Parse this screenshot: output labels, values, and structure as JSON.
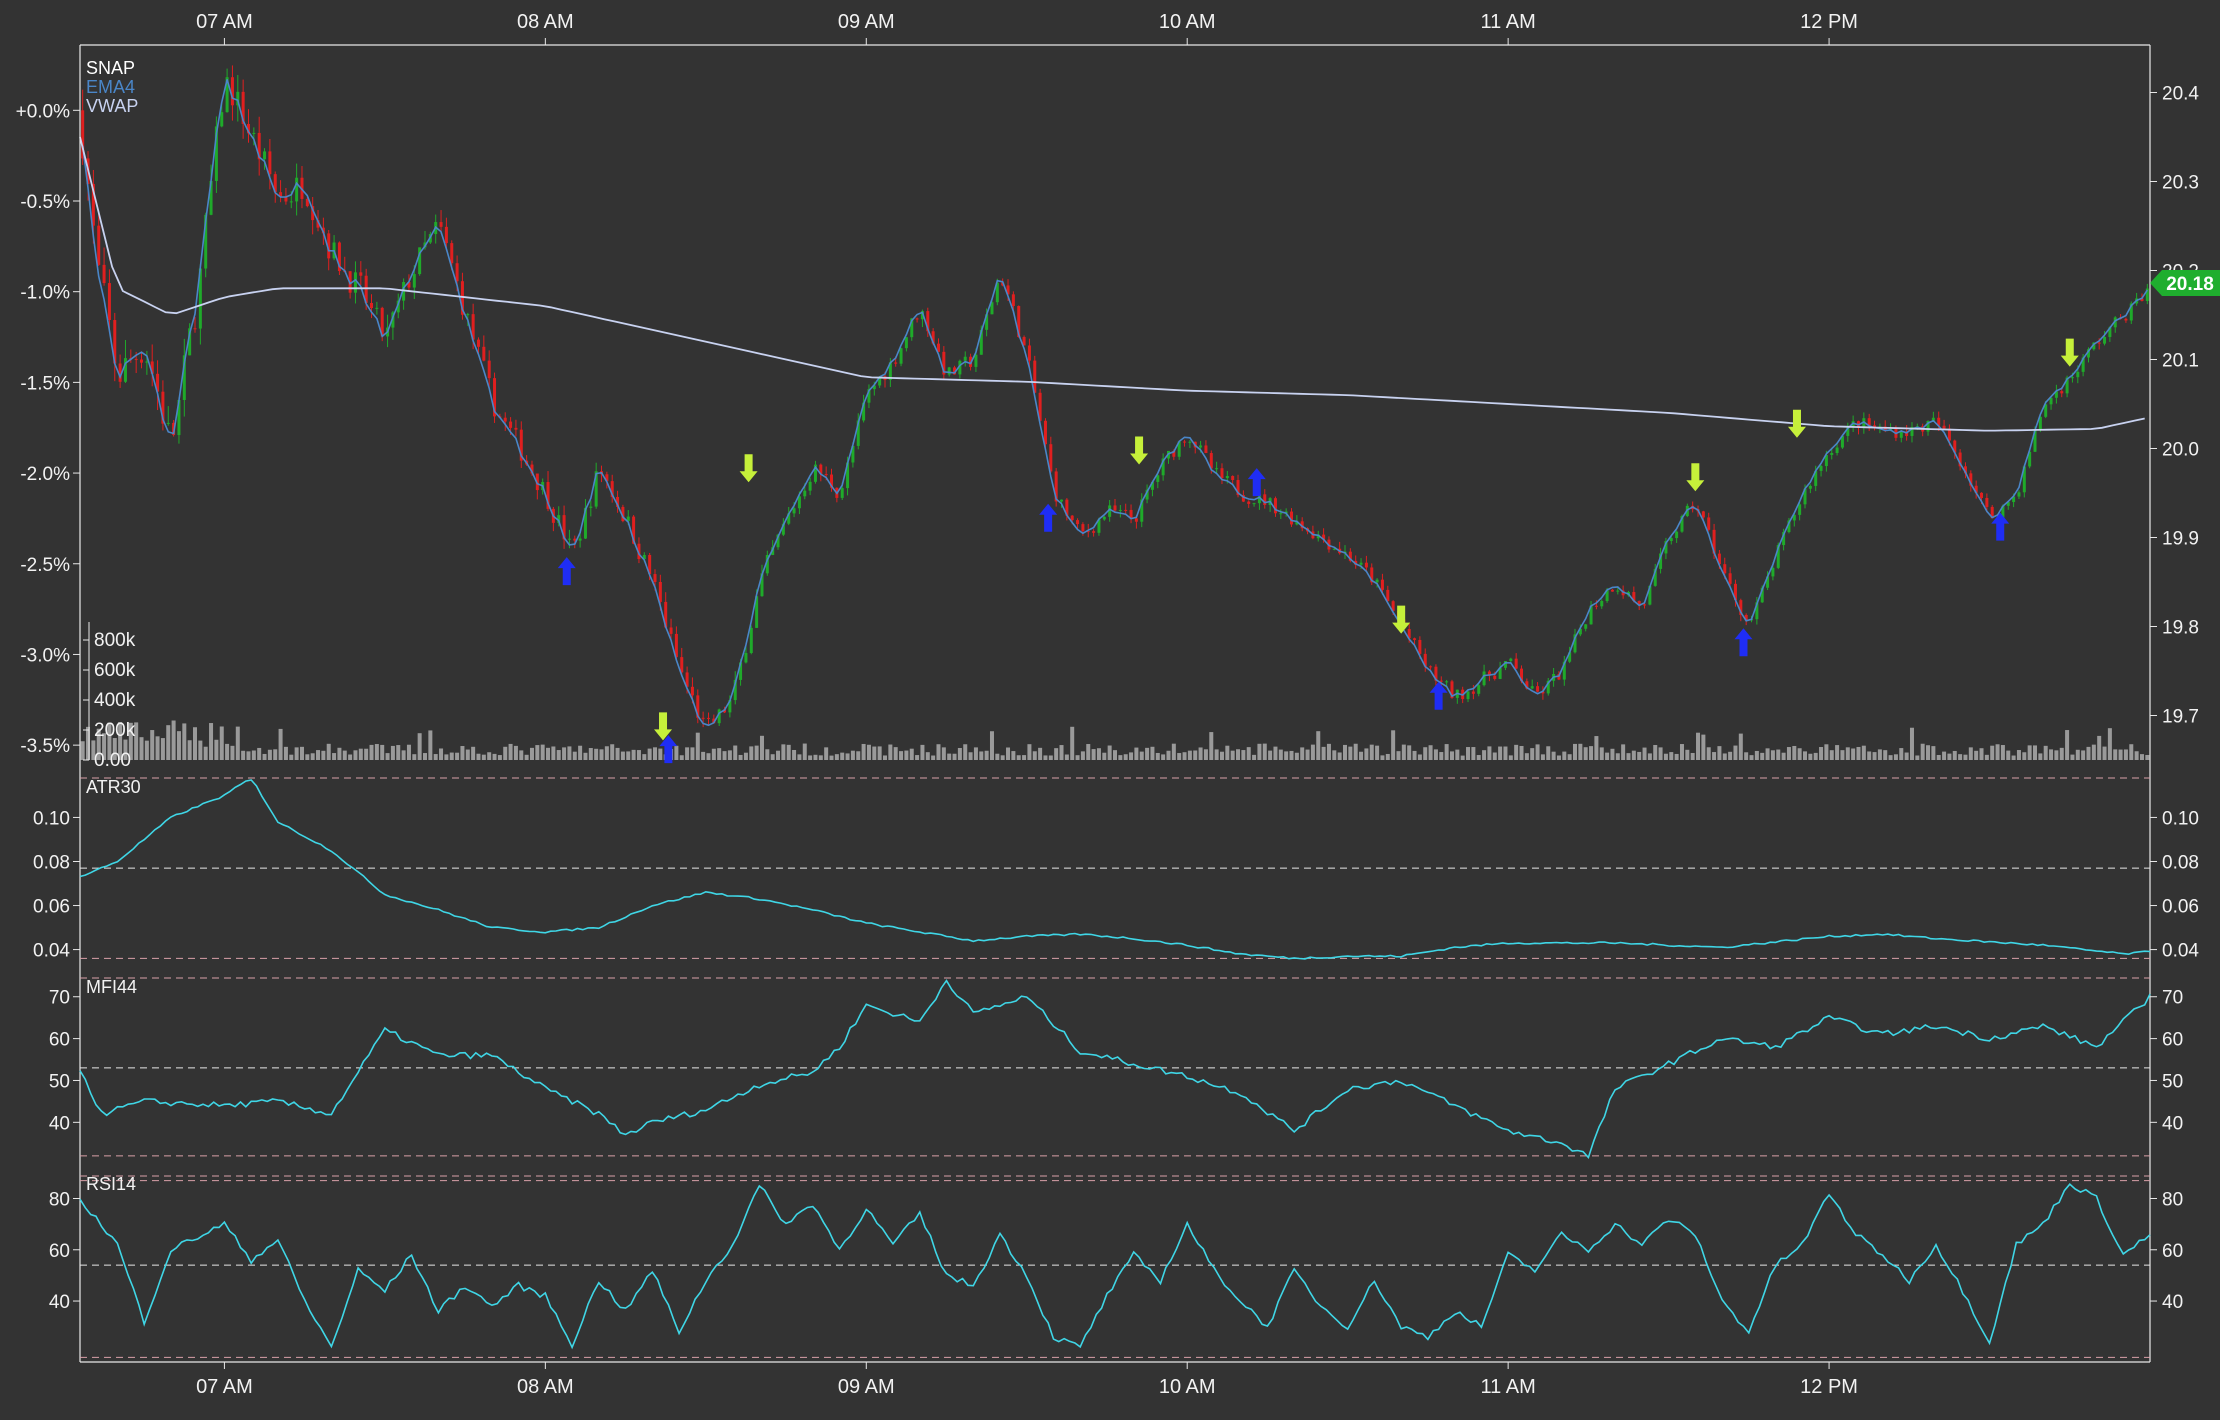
{
  "chart_data": {
    "type": "candlestick",
    "symbol": "SNAP",
    "legend": [
      {
        "name": "SNAP",
        "color": "#ffffff"
      },
      {
        "name": "EMA4",
        "color": "#4a86c8"
      },
      {
        "name": "VWAP",
        "color": "#c8d2f0"
      }
    ],
    "x_ticks": [
      "07 AM",
      "08 AM",
      "09 AM",
      "10 AM",
      "11 AM",
      "12 PM"
    ],
    "time_range": [
      "06:33",
      "13:00"
    ],
    "price_axis": {
      "ticks": [
        "20.4",
        "20.3",
        "20.2",
        "20.1",
        "20.0",
        "19.9",
        "19.8",
        "19.7"
      ],
      "range": [
        19.65,
        20.45
      ]
    },
    "pct_axis": {
      "ticks": [
        "+0.0%",
        "-0.5%",
        "-1.0%",
        "-1.5%",
        "-2.0%",
        "-2.5%",
        "-3.0%",
        "-3.5%"
      ],
      "base": 20.38
    },
    "last_price": "20.18",
    "volume_axis": {
      "ticks": [
        "800k",
        "600k",
        "400k",
        "200k",
        "0.00"
      ]
    },
    "price_path": [
      [
        "06:33",
        20.38
      ],
      [
        "06:36",
        20.2
      ],
      [
        "06:40",
        20.08
      ],
      [
        "06:45",
        20.12
      ],
      [
        "06:50",
        20.0
      ],
      [
        "06:55",
        20.18
      ],
      [
        "07:00",
        20.42
      ],
      [
        "07:05",
        20.35
      ],
      [
        "07:10",
        20.28
      ],
      [
        "07:15",
        20.3
      ],
      [
        "07:20",
        20.22
      ],
      [
        "07:25",
        20.18
      ],
      [
        "07:30",
        20.12
      ],
      [
        "07:35",
        20.2
      ],
      [
        "07:40",
        20.25
      ],
      [
        "07:45",
        20.15
      ],
      [
        "07:50",
        20.05
      ],
      [
        "07:55",
        20.0
      ],
      [
        "08:00",
        19.95
      ],
      [
        "08:05",
        19.88
      ],
      [
        "08:10",
        19.98
      ],
      [
        "08:15",
        19.92
      ],
      [
        "08:20",
        19.85
      ],
      [
        "08:25",
        19.75
      ],
      [
        "08:30",
        19.68
      ],
      [
        "08:35",
        19.72
      ],
      [
        "08:40",
        19.85
      ],
      [
        "08:45",
        19.92
      ],
      [
        "08:50",
        19.98
      ],
      [
        "08:55",
        19.95
      ],
      [
        "09:00",
        20.06
      ],
      [
        "09:05",
        20.1
      ],
      [
        "09:10",
        20.16
      ],
      [
        "09:15",
        20.08
      ],
      [
        "09:20",
        20.1
      ],
      [
        "09:25",
        20.2
      ],
      [
        "09:30",
        20.1
      ],
      [
        "09:35",
        19.95
      ],
      [
        "09:40",
        19.9
      ],
      [
        "09:45",
        19.93
      ],
      [
        "09:50",
        19.92
      ],
      [
        "09:55",
        19.98
      ],
      [
        "10:00",
        20.02
      ],
      [
        "10:05",
        19.97
      ],
      [
        "10:10",
        19.95
      ],
      [
        "10:15",
        19.94
      ],
      [
        "10:20",
        19.92
      ],
      [
        "10:25",
        19.9
      ],
      [
        "10:30",
        19.88
      ],
      [
        "10:35",
        19.85
      ],
      [
        "10:40",
        19.8
      ],
      [
        "10:45",
        19.75
      ],
      [
        "10:50",
        19.72
      ],
      [
        "10:55",
        19.74
      ],
      [
        "11:00",
        19.76
      ],
      [
        "11:05",
        19.72
      ],
      [
        "11:10",
        19.75
      ],
      [
        "11:15",
        19.82
      ],
      [
        "11:20",
        19.85
      ],
      [
        "11:25",
        19.82
      ],
      [
        "11:30",
        19.9
      ],
      [
        "11:35",
        19.94
      ],
      [
        "11:40",
        19.86
      ],
      [
        "11:45",
        19.8
      ],
      [
        "11:50",
        19.88
      ],
      [
        "11:55",
        19.95
      ],
      [
        "12:00",
        20.0
      ],
      [
        "12:05",
        20.03
      ],
      [
        "12:10",
        20.02
      ],
      [
        "12:15",
        20.02
      ],
      [
        "12:20",
        20.03
      ],
      [
        "12:25",
        19.98
      ],
      [
        "12:30",
        19.92
      ],
      [
        "12:35",
        19.95
      ],
      [
        "12:40",
        20.05
      ],
      [
        "12:45",
        20.08
      ],
      [
        "12:50",
        20.12
      ],
      [
        "12:55",
        20.15
      ],
      [
        "13:00",
        20.18
      ]
    ],
    "vwap_path": [
      [
        "06:33",
        20.35
      ],
      [
        "06:40",
        20.18
      ],
      [
        "06:50",
        20.15
      ],
      [
        "06:55",
        20.16
      ],
      [
        "07:00",
        20.17
      ],
      [
        "07:10",
        20.18
      ],
      [
        "07:30",
        20.18
      ],
      [
        "08:00",
        20.16
      ],
      [
        "08:30",
        20.12
      ],
      [
        "09:00",
        20.08
      ],
      [
        "09:30",
        20.075
      ],
      [
        "10:00",
        20.065
      ],
      [
        "10:30",
        20.06
      ],
      [
        "11:00",
        20.05
      ],
      [
        "11:30",
        20.04
      ],
      [
        "12:00",
        20.025
      ],
      [
        "12:30",
        20.02
      ],
      [
        "12:50",
        20.022
      ],
      [
        "13:00",
        20.035
      ]
    ],
    "signals": [
      {
        "time": "08:04",
        "type": "up",
        "price": 19.86
      },
      {
        "time": "08:22",
        "type": "down",
        "price": 19.69
      },
      {
        "time": "08:23",
        "type": "up",
        "price": 19.66
      },
      {
        "time": "08:38",
        "type": "down",
        "price": 19.98
      },
      {
        "time": "09:34",
        "type": "up",
        "price": 19.92
      },
      {
        "time": "09:51",
        "type": "down",
        "price": 20.0
      },
      {
        "time": "10:13",
        "type": "up",
        "price": 19.96
      },
      {
        "time": "10:40",
        "type": "down",
        "price": 19.81
      },
      {
        "time": "10:47",
        "type": "up",
        "price": 19.72
      },
      {
        "time": "11:35",
        "type": "down",
        "price": 19.97
      },
      {
        "time": "11:44",
        "type": "up",
        "price": 19.78
      },
      {
        "time": "11:54",
        "type": "down",
        "price": 20.03
      },
      {
        "time": "12:32",
        "type": "up",
        "price": 19.91
      },
      {
        "time": "12:45",
        "type": "down",
        "price": 20.11
      }
    ],
    "indicators": [
      {
        "name": "ATR30",
        "ticks": [
          "0.10",
          "0.08",
          "0.06",
          "0.04"
        ],
        "range": [
          0.033,
          0.117
        ],
        "reference_lines": [
          0.077,
          0.036
        ],
        "path": [
          [
            "06:33",
            0.073
          ],
          [
            "06:40",
            0.08
          ],
          [
            "06:50",
            0.1
          ],
          [
            "07:00",
            0.11
          ],
          [
            "07:05",
            0.118
          ],
          [
            "07:10",
            0.098
          ],
          [
            "07:20",
            0.085
          ],
          [
            "07:30",
            0.065
          ],
          [
            "07:40",
            0.058
          ],
          [
            "07:50",
            0.05
          ],
          [
            "08:00",
            0.048
          ],
          [
            "08:10",
            0.05
          ],
          [
            "08:20",
            0.06
          ],
          [
            "08:30",
            0.066
          ],
          [
            "08:40",
            0.063
          ],
          [
            "08:50",
            0.058
          ],
          [
            "09:00",
            0.052
          ],
          [
            "09:10",
            0.048
          ],
          [
            "09:20",
            0.044
          ],
          [
            "09:30",
            0.046
          ],
          [
            "09:40",
            0.047
          ],
          [
            "09:50",
            0.045
          ],
          [
            "10:00",
            0.042
          ],
          [
            "10:10",
            0.038
          ],
          [
            "10:20",
            0.036
          ],
          [
            "10:30",
            0.037
          ],
          [
            "10:40",
            0.037
          ],
          [
            "10:50",
            0.041
          ],
          [
            "11:00",
            0.043
          ],
          [
            "11:20",
            0.043
          ],
          [
            "11:40",
            0.041
          ],
          [
            "12:00",
            0.046
          ],
          [
            "12:10",
            0.047
          ],
          [
            "12:20",
            0.045
          ],
          [
            "12:40",
            0.042
          ],
          [
            "12:55",
            0.038
          ],
          [
            "13:00",
            0.039
          ]
        ]
      },
      {
        "name": "MFI44",
        "ticks": [
          "70",
          "60",
          "50",
          "40"
        ],
        "range": [
          31,
          74
        ],
        "reference_lines": [
          53,
          32
        ],
        "path": [
          [
            "06:33",
            53
          ],
          [
            "06:37",
            42
          ],
          [
            "06:45",
            45
          ],
          [
            "07:00",
            44
          ],
          [
            "07:10",
            45
          ],
          [
            "07:20",
            42
          ],
          [
            "07:25",
            52
          ],
          [
            "07:30",
            62
          ],
          [
            "07:40",
            56
          ],
          [
            "07:50",
            56
          ],
          [
            "08:00",
            48
          ],
          [
            "08:10",
            42
          ],
          [
            "08:15",
            37
          ],
          [
            "08:20",
            40
          ],
          [
            "08:30",
            43
          ],
          [
            "08:40",
            49
          ],
          [
            "08:50",
            52
          ],
          [
            "08:55",
            58
          ],
          [
            "09:00",
            68
          ],
          [
            "09:10",
            64
          ],
          [
            "09:15",
            74
          ],
          [
            "09:20",
            66
          ],
          [
            "09:30",
            70
          ],
          [
            "09:40",
            57
          ],
          [
            "09:50",
            54
          ],
          [
            "10:00",
            51
          ],
          [
            "10:10",
            47
          ],
          [
            "10:20",
            38
          ],
          [
            "10:30",
            48
          ],
          [
            "10:40",
            50
          ],
          [
            "10:50",
            44
          ],
          [
            "11:00",
            38
          ],
          [
            "11:10",
            35
          ],
          [
            "11:15",
            32
          ],
          [
            "11:20",
            48
          ],
          [
            "11:30",
            54
          ],
          [
            "11:40",
            60
          ],
          [
            "11:50",
            58
          ],
          [
            "12:00",
            65
          ],
          [
            "12:10",
            61
          ],
          [
            "12:20",
            63
          ],
          [
            "12:30",
            60
          ],
          [
            "12:40",
            63
          ],
          [
            "12:50",
            58
          ],
          [
            "13:00",
            70
          ]
        ]
      },
      {
        "name": "RSI14",
        "ticks": [
          "80",
          "60",
          "40"
        ],
        "range": [
          17,
          88
        ],
        "reference_lines": [
          54,
          87,
          18
        ],
        "path": [
          [
            "06:33",
            80
          ],
          [
            "06:40",
            62
          ],
          [
            "06:45",
            32
          ],
          [
            "06:50",
            60
          ],
          [
            "07:00",
            70
          ],
          [
            "07:05",
            56
          ],
          [
            "07:10",
            64
          ],
          [
            "07:15",
            40
          ],
          [
            "07:20",
            22
          ],
          [
            "07:25",
            52
          ],
          [
            "07:30",
            44
          ],
          [
            "07:35",
            58
          ],
          [
            "07:40",
            36
          ],
          [
            "07:45",
            46
          ],
          [
            "07:50",
            38
          ],
          [
            "07:55",
            46
          ],
          [
            "08:00",
            42
          ],
          [
            "08:05",
            23
          ],
          [
            "08:10",
            48
          ],
          [
            "08:15",
            36
          ],
          [
            "08:20",
            52
          ],
          [
            "08:25",
            28
          ],
          [
            "08:30",
            48
          ],
          [
            "08:35",
            62
          ],
          [
            "08:40",
            85
          ],
          [
            "08:45",
            70
          ],
          [
            "08:50",
            78
          ],
          [
            "08:55",
            60
          ],
          [
            "09:00",
            76
          ],
          [
            "09:05",
            62
          ],
          [
            "09:10",
            74
          ],
          [
            "09:15",
            50
          ],
          [
            "09:20",
            46
          ],
          [
            "09:25",
            66
          ],
          [
            "09:30",
            50
          ],
          [
            "09:35",
            26
          ],
          [
            "09:40",
            22
          ],
          [
            "09:45",
            42
          ],
          [
            "09:50",
            58
          ],
          [
            "09:55",
            48
          ],
          [
            "10:00",
            70
          ],
          [
            "10:05",
            52
          ],
          [
            "10:10",
            40
          ],
          [
            "10:15",
            30
          ],
          [
            "10:20",
            52
          ],
          [
            "10:25",
            38
          ],
          [
            "10:30",
            30
          ],
          [
            "10:35",
            48
          ],
          [
            "10:40",
            30
          ],
          [
            "10:45",
            26
          ],
          [
            "10:50",
            36
          ],
          [
            "10:55",
            30
          ],
          [
            "11:00",
            58
          ],
          [
            "11:05",
            52
          ],
          [
            "11:10",
            66
          ],
          [
            "11:15",
            60
          ],
          [
            "11:20",
            70
          ],
          [
            "11:25",
            62
          ],
          [
            "11:30",
            72
          ],
          [
            "11:35",
            66
          ],
          [
            "11:40",
            40
          ],
          [
            "11:45",
            28
          ],
          [
            "11:50",
            54
          ],
          [
            "11:55",
            62
          ],
          [
            "12:00",
            82
          ],
          [
            "12:05",
            66
          ],
          [
            "12:10",
            58
          ],
          [
            "12:15",
            48
          ],
          [
            "12:20",
            62
          ],
          [
            "12:25",
            44
          ],
          [
            "12:30",
            24
          ],
          [
            "12:35",
            62
          ],
          [
            "12:40",
            70
          ],
          [
            "12:45",
            86
          ],
          [
            "12:50",
            80
          ],
          [
            "12:55",
            58
          ],
          [
            "13:00",
            66
          ]
        ]
      }
    ]
  }
}
